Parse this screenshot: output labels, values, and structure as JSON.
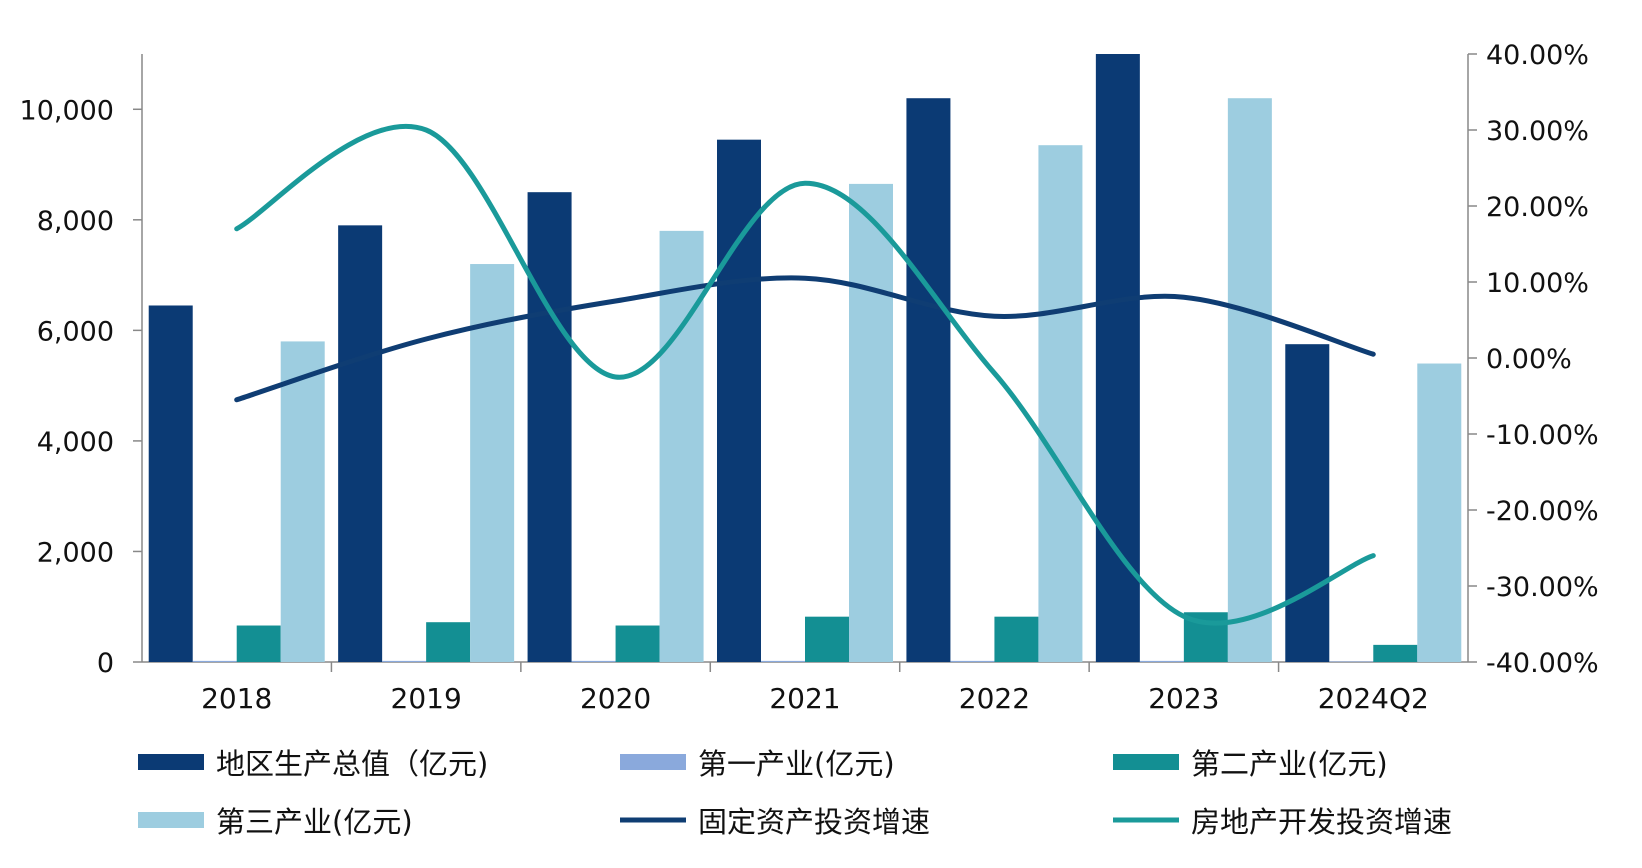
{
  "chart_data": {
    "type": "bar",
    "categories": [
      "2018",
      "2019",
      "2020",
      "2021",
      "2022",
      "2023",
      "2024Q2"
    ],
    "series": [
      {
        "name": "地区生产总值（亿元)",
        "kind": "bar",
        "axis": "left",
        "color": "#0b3a74",
        "values": [
          6450,
          7900,
          8500,
          9450,
          10200,
          11000,
          5750
        ]
      },
      {
        "name": "第一产业(亿元)",
        "kind": "bar",
        "axis": "left",
        "color": "#8aa9dc",
        "values": [
          20,
          20,
          20,
          20,
          20,
          20,
          10
        ]
      },
      {
        "name": "第二产业(亿元)",
        "kind": "bar",
        "axis": "left",
        "color": "#138f93",
        "values": [
          660,
          720,
          660,
          820,
          820,
          900,
          310
        ]
      },
      {
        "name": "第三产业(亿元)",
        "kind": "bar",
        "axis": "left",
        "color": "#9dcde0",
        "values": [
          5800,
          7200,
          7800,
          8650,
          9350,
          10200,
          5400
        ]
      },
      {
        "name": "固定资产投资增速",
        "kind": "line",
        "axis": "right",
        "color": "#0f3d73",
        "values": [
          -5.5,
          2.5,
          7.5,
          10.5,
          5.5,
          8.0,
          0.5
        ]
      },
      {
        "name": "房地产开发投资增速",
        "kind": "line",
        "axis": "right",
        "color": "#1a9a9a",
        "values": [
          17.0,
          30.0,
          -2.5,
          23.0,
          -2.0,
          -34.0,
          -26.0
        ]
      }
    ],
    "y_left": {
      "min": 0,
      "max": 11000,
      "ticks": [
        0,
        2000,
        4000,
        6000,
        8000,
        10000
      ],
      "tick_labels": [
        "0",
        "2,000",
        "4,000",
        "6,000",
        "8,000",
        "10,000"
      ]
    },
    "y_right": {
      "min": -40,
      "max": 40,
      "ticks": [
        -40,
        -30,
        -20,
        -10,
        0,
        10,
        20,
        30,
        40
      ],
      "tick_labels": [
        "-40.00%",
        "-30.00%",
        "-20.00%",
        "-10.00%",
        "0.00%",
        "10.00%",
        "20.00%",
        "30.00%",
        "40.00%"
      ]
    },
    "legend": {
      "position": "bottom",
      "columns": 3
    },
    "grid": false
  }
}
